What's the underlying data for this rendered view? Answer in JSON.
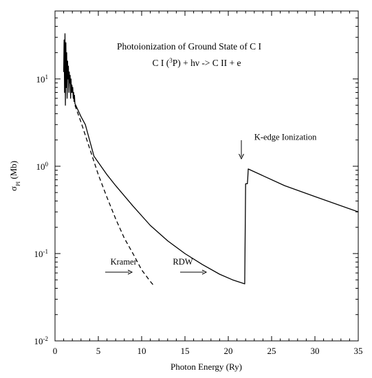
{
  "chart_data": {
    "type": "line",
    "title_line1": "Photoionization of Ground State of C I",
    "title_line2": {
      "pre": "C I (",
      "sup": "3",
      "mid": "P) + hν -> C II + e"
    },
    "xlabel": "Photon Energy (Ry)",
    "ylabel": {
      "sym": "σ",
      "sub": "PI",
      "unit": " (Mb)"
    },
    "xlim": [
      0,
      35
    ],
    "ylim": [
      0.01,
      60
    ],
    "yscale": "log",
    "grid": false,
    "x_ticks": [
      "0",
      "5",
      "10",
      "15",
      "20",
      "25",
      "30",
      "35"
    ],
    "y_ticks": [
      {
        "base": "10",
        "exp": "1",
        "value": 10
      },
      {
        "base": "10",
        "exp": "0",
        "value": 1
      },
      {
        "base": "10",
        "exp": "-1",
        "value": 0.1
      },
      {
        "base": "10",
        "exp": "-2",
        "value": 0.01
      }
    ],
    "series": [
      {
        "name": "RDW",
        "style": "solid",
        "x": [
          1.0,
          1.05,
          1.1,
          1.15,
          1.2,
          1.25,
          1.3,
          1.35,
          1.4,
          1.45,
          1.5,
          1.55,
          1.6,
          1.65,
          1.7,
          1.75,
          1.8,
          1.85,
          1.9,
          1.95,
          2.0,
          2.05,
          2.1,
          2.15,
          2.2,
          2.25,
          2.3,
          2.4,
          2.6,
          3.0,
          3.5,
          4.5,
          6.0,
          7.0,
          9.0,
          11.0,
          13.0,
          15.0,
          17.0,
          19.0,
          20.5,
          21.9,
          22.0,
          22.05,
          22.2,
          22.25,
          22.3,
          26.5,
          30.0,
          35.0
        ],
        "y": [
          12,
          28,
          7,
          33,
          5,
          26,
          8,
          20,
          6,
          16,
          10,
          14,
          7,
          12,
          9,
          11,
          6,
          10,
          7,
          8.5,
          7,
          8,
          6,
          7,
          5.5,
          6.5,
          5.2,
          5.0,
          4.5,
          3.7,
          3.0,
          1.3,
          0.8,
          0.6,
          0.35,
          0.21,
          0.14,
          0.1,
          0.075,
          0.058,
          0.05,
          0.045,
          0.63,
          0.63,
          0.63,
          0.72,
          0.93,
          0.6,
          0.45,
          0.3
        ]
      },
      {
        "name": "Kramer",
        "style": "dashed",
        "x": [
          2.3,
          3.0,
          4.0,
          5.0,
          6.0,
          7.0,
          8.0,
          9.0,
          10.0,
          11.0,
          11.4
        ],
        "y": [
          5.0,
          3.2,
          1.6,
          0.8,
          0.44,
          0.25,
          0.15,
          0.1,
          0.065,
          0.048,
          0.043
        ]
      }
    ],
    "annotations": [
      {
        "text": "Kramer",
        "x": 6.4,
        "y": 0.075
      },
      {
        "text": "RDW",
        "x": 13.6,
        "y": 0.075
      },
      {
        "text": "K-edge Ionization",
        "x": 23.0,
        "y": 2.0
      }
    ]
  }
}
